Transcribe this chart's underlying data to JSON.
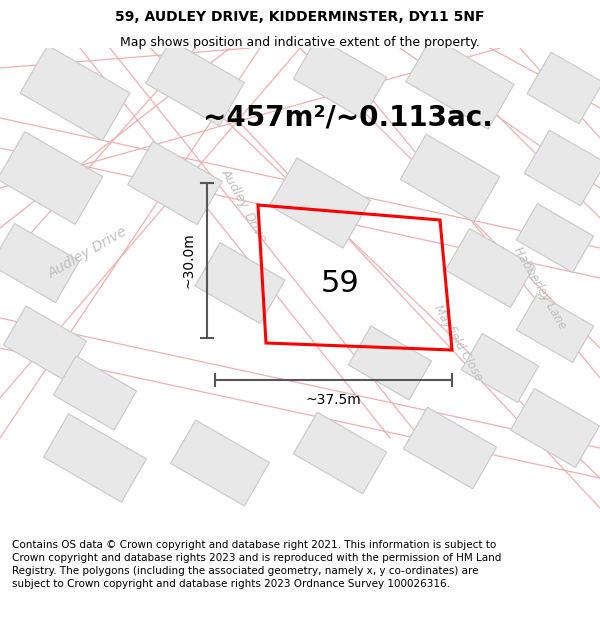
{
  "title_line1": "59, AUDLEY DRIVE, KIDDERMINSTER, DY11 5NF",
  "title_line2": "Map shows position and indicative extent of the property.",
  "area_text": "~457m²/~0.113ac.",
  "label_59": "59",
  "dim_width": "~37.5m",
  "dim_height": "~30.0m",
  "footer_text": "Contains OS data © Crown copyright and database right 2021. This information is subject to Crown copyright and database rights 2023 and is reproduced with the permission of HM Land Registry. The polygons (including the associated geometry, namely x, y co-ordinates) are subject to Crown copyright and database rights 2023 Ordnance Survey 100026316.",
  "bg_color": "#ffffff",
  "map_bg": "#ffffff",
  "plot_color": "#ff0000",
  "dim_color": "#555555",
  "street_line_color": "#f0b0b0",
  "building_fill": "#e8e8e8",
  "building_edge": "#c8c8c8",
  "road_label_color": "#c0c0c0",
  "title_fontsize": 10,
  "subtitle_fontsize": 9,
  "area_fontsize": 20,
  "label_fontsize": 22,
  "footer_fontsize": 7.5,
  "dim_fontsize": 10,
  "road_label_fontsize": 10
}
